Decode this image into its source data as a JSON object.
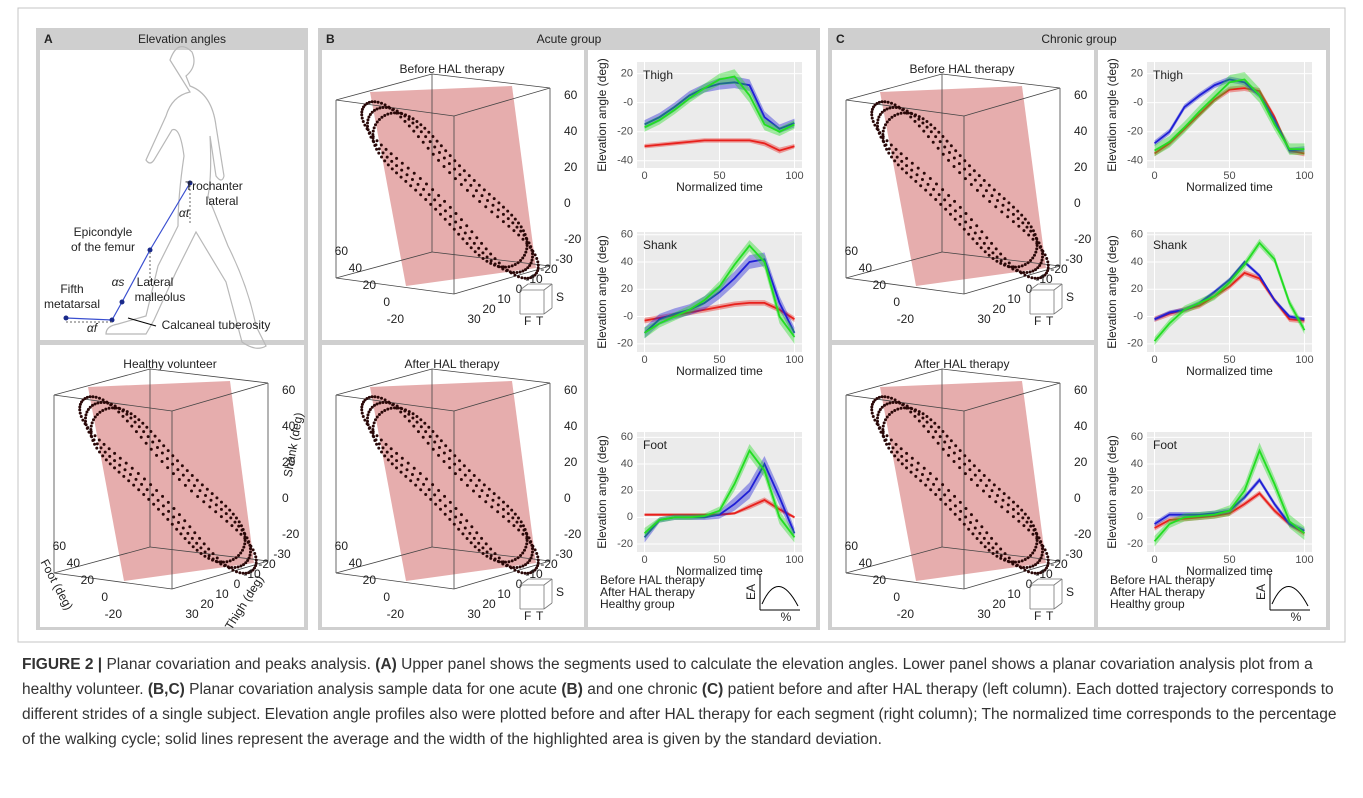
{
  "panels": [
    {
      "letter": "A",
      "title": "Elevation angles",
      "anatomy_labels": [
        "Trochanter",
        "lateral",
        "Epicondyle",
        "of the femur",
        "Fifth",
        "metatarsal",
        "Lateral",
        "malleolus",
        "Calcaneal tuberosity",
        "αt",
        "αs",
        "αf"
      ],
      "plots": [
        {
          "title": "Healthy volunteer",
          "axis_labels": [
            "Shank (deg)",
            "Foot (deg)",
            "Thigh (deg)"
          ],
          "z_ticks": [
            60,
            40,
            20,
            0,
            -20
          ],
          "y_ticks": [
            60,
            40,
            20,
            0,
            -20
          ],
          "x_ticks": [
            -30,
            -20,
            -10,
            0,
            10,
            20,
            30
          ]
        }
      ]
    },
    {
      "letter": "B",
      "title": "Acute group",
      "plots": [
        {
          "title": "Before HAL therapy",
          "orientation": [
            "S",
            "F",
            "T"
          ],
          "z_ticks": [
            60,
            40,
            20,
            0,
            -20
          ],
          "y_ticks": [
            60,
            40,
            20,
            0,
            -20
          ],
          "x_ticks": [
            -30,
            -20,
            -10,
            0,
            10,
            20,
            30
          ]
        },
        {
          "title": "After HAL therapy",
          "orientation": [
            "S",
            "F",
            "T"
          ],
          "z_ticks": [
            60,
            40,
            20,
            0,
            -20
          ],
          "y_ticks": [
            60,
            40,
            20,
            0,
            -20
          ],
          "x_ticks": [
            -30,
            -20,
            -10,
            0,
            10,
            20,
            30
          ]
        }
      ],
      "legend_inset": [
        "EA",
        "%"
      ]
    },
    {
      "letter": "C",
      "title": "Chronic group",
      "plots": [
        {
          "title": "Before HAL therapy",
          "orientation": [
            "S",
            "F",
            "T"
          ],
          "z_ticks": [
            60,
            40,
            20,
            0,
            -20
          ],
          "y_ticks": [
            60,
            40,
            20,
            0,
            -20
          ],
          "x_ticks": [
            -30,
            -20,
            -10,
            0,
            10,
            20,
            30
          ]
        },
        {
          "title": "After HAL therapy",
          "orientation": [
            "S",
            "F",
            "T"
          ],
          "z_ticks": [
            60,
            40,
            20,
            0,
            -20
          ],
          "y_ticks": [
            60,
            40,
            20,
            0,
            -20
          ],
          "x_ticks": [
            -30,
            -20,
            -10,
            0,
            10,
            20,
            30
          ]
        }
      ],
      "legend_inset": [
        "EA",
        "%"
      ]
    }
  ],
  "chart_data": [
    {
      "type": "line",
      "title": "Thigh",
      "x_label": "Normalized time",
      "y_label": "Elevation angle (deg)",
      "x": [
        0,
        10,
        20,
        30,
        40,
        50,
        60,
        70,
        80,
        90,
        100
      ],
      "xlim": [
        -5,
        105
      ],
      "xticks": [
        0,
        50,
        100
      ],
      "ylim": [
        -45,
        28
      ],
      "yticks": [
        -40,
        -20,
        {
          "value": 0,
          "label": "-0"
        },
        20
      ],
      "grid": true,
      "series": [
        {
          "name": "Before HAL therapy",
          "color": "#e8201c",
          "values": [
            -30,
            -29,
            -28,
            -27,
            -26,
            -26,
            -26,
            -26,
            -28,
            -33,
            -30
          ],
          "sd": [
            1.5,
            1.5,
            1.5,
            1.5,
            1.5,
            1.5,
            1.5,
            1.5,
            2,
            2,
            1.5
          ]
        },
        {
          "name": "After HAL therapy",
          "color": "#1f1fd6",
          "values": [
            -15,
            -10,
            -3,
            5,
            10,
            13,
            14,
            12,
            -10,
            -18,
            -14
          ],
          "sd": [
            3,
            3,
            3,
            3,
            3,
            4,
            4,
            4,
            4,
            3,
            3
          ]
        },
        {
          "name": "Healthy group",
          "color": "#22dd22",
          "values": [
            -17,
            -12,
            -5,
            3,
            10,
            16,
            18,
            5,
            -15,
            -20,
            -15
          ],
          "sd": [
            3,
            3,
            3,
            3,
            3,
            4,
            5,
            5,
            4,
            3,
            3
          ]
        }
      ]
    },
    {
      "type": "line",
      "title": "Shank",
      "x_label": "Normalized time",
      "y_label": "Elevation angle (deg)",
      "x": [
        0,
        10,
        20,
        30,
        40,
        50,
        60,
        70,
        80,
        90,
        100
      ],
      "xlim": [
        -5,
        105
      ],
      "xticks": [
        0,
        50,
        100
      ],
      "ylim": [
        -26,
        62
      ],
      "yticks": [
        -20,
        {
          "value": 0,
          "label": "-0"
        },
        20,
        40,
        60
      ],
      "grid": true,
      "series": [
        {
          "name": "Before HAL therapy",
          "color": "#e8201c",
          "values": [
            -3,
            -1,
            1,
            3,
            5,
            7,
            9,
            10,
            10,
            5,
            -2
          ],
          "sd": [
            2,
            2,
            2,
            2,
            2,
            2,
            2,
            2,
            2,
            2,
            2
          ]
        },
        {
          "name": "After HAL therapy",
          "color": "#1f1fd6",
          "values": [
            -12,
            -2,
            2,
            5,
            10,
            18,
            28,
            40,
            42,
            10,
            -12
          ],
          "sd": [
            4,
            4,
            4,
            4,
            5,
            5,
            5,
            5,
            5,
            5,
            4
          ]
        },
        {
          "name": "Healthy group",
          "color": "#22dd22",
          "values": [
            -12,
            -5,
            0,
            5,
            12,
            22,
            38,
            52,
            40,
            0,
            -15
          ],
          "sd": [
            4,
            3,
            3,
            3,
            3,
            4,
            4,
            4,
            5,
            5,
            5
          ]
        }
      ]
    },
    {
      "type": "line",
      "title": "Foot",
      "x_label": "Normalized time",
      "y_label": "Elevation angle (deg)",
      "x": [
        0,
        10,
        20,
        30,
        40,
        50,
        60,
        70,
        80,
        90,
        100
      ],
      "xlim": [
        -5,
        105
      ],
      "xticks": [
        0,
        50,
        100
      ],
      "ylim": [
        -26,
        64
      ],
      "yticks": [
        -20,
        0,
        20,
        40,
        60
      ],
      "grid": true,
      "series": [
        {
          "name": "Before HAL therapy",
          "color": "#e8201c",
          "values": [
            2,
            2,
            2,
            2,
            2,
            2,
            3,
            8,
            13,
            6,
            0
          ],
          "sd": [
            1,
            1,
            1,
            1,
            1,
            1,
            1,
            2,
            2,
            2,
            1
          ]
        },
        {
          "name": "After HAL therapy",
          "color": "#1f1fd6",
          "values": [
            -15,
            -2,
            0,
            0,
            0,
            2,
            10,
            20,
            40,
            15,
            -12
          ],
          "sd": [
            4,
            2,
            2,
            2,
            2,
            3,
            5,
            6,
            6,
            6,
            4
          ]
        },
        {
          "name": "Healthy group",
          "color": "#22dd22",
          "values": [
            -12,
            -2,
            0,
            0,
            1,
            5,
            25,
            50,
            35,
            0,
            -15
          ],
          "sd": [
            4,
            2,
            2,
            2,
            2,
            3,
            5,
            5,
            5,
            5,
            4
          ]
        }
      ]
    },
    {
      "type": "line",
      "title": "Thigh",
      "x_label": "Normalized time",
      "y_label": "Elevation angle (deg)",
      "x": [
        0,
        10,
        20,
        30,
        40,
        50,
        60,
        70,
        80,
        90,
        100
      ],
      "xlim": [
        -5,
        105
      ],
      "xticks": [
        0,
        50,
        100
      ],
      "ylim": [
        -45,
        28
      ],
      "yticks": [
        -40,
        -20,
        {
          "value": 0,
          "label": "-0"
        },
        20
      ],
      "grid": true,
      "series": [
        {
          "name": "Before HAL therapy",
          "color": "#e8201c",
          "values": [
            -35,
            -28,
            -18,
            -8,
            2,
            9,
            10,
            8,
            -10,
            -33,
            -35
          ],
          "sd": [
            2,
            2,
            2,
            2,
            2,
            2,
            2,
            2,
            2,
            2,
            2
          ]
        },
        {
          "name": "After HAL therapy",
          "color": "#1f1fd6",
          "values": [
            -28,
            -20,
            -3,
            5,
            12,
            16,
            14,
            5,
            -12,
            -33,
            -32
          ],
          "sd": [
            2,
            2,
            2,
            2,
            2,
            2,
            2,
            2,
            2,
            2,
            2
          ]
        },
        {
          "name": "Healthy group",
          "color": "#22dd22",
          "values": [
            -33,
            -27,
            -17,
            -6,
            4,
            14,
            16,
            5,
            -15,
            -32,
            -32
          ],
          "sd": [
            4,
            4,
            4,
            4,
            4,
            5,
            5,
            5,
            4,
            4,
            4
          ]
        }
      ]
    },
    {
      "type": "line",
      "title": "Shank",
      "x_label": "Normalized time",
      "y_label": "Elevation angle (deg)",
      "x": [
        0,
        10,
        20,
        30,
        40,
        50,
        60,
        70,
        80,
        90,
        100
      ],
      "xlim": [
        -5,
        105
      ],
      "xticks": [
        0,
        50,
        100
      ],
      "ylim": [
        -26,
        62
      ],
      "yticks": [
        -20,
        {
          "value": 0,
          "label": "-0"
        },
        20,
        40,
        60
      ],
      "grid": true,
      "series": [
        {
          "name": "Before HAL therapy",
          "color": "#e8201c",
          "values": [
            -2,
            2,
            5,
            8,
            15,
            22,
            32,
            28,
            12,
            -2,
            -3
          ],
          "sd": [
            2,
            2,
            2,
            2,
            2,
            2,
            2,
            2,
            2,
            2,
            2
          ]
        },
        {
          "name": "After HAL therapy",
          "color": "#1f1fd6",
          "values": [
            -2,
            3,
            5,
            10,
            18,
            27,
            40,
            30,
            12,
            0,
            -2
          ],
          "sd": [
            1.5,
            1.5,
            1.5,
            1.5,
            1.5,
            1.5,
            1.5,
            1.5,
            1.5,
            1.5,
            1.5
          ]
        },
        {
          "name": "Healthy group",
          "color": "#22dd22",
          "values": [
            -18,
            -5,
            5,
            10,
            15,
            25,
            38,
            54,
            42,
            10,
            -10
          ],
          "sd": [
            3,
            3,
            3,
            3,
            3,
            3,
            3,
            3,
            3,
            3,
            3
          ]
        }
      ]
    },
    {
      "type": "line",
      "title": "Foot",
      "x_label": "Normalized time",
      "y_label": "Elevation angle (deg)",
      "x": [
        0,
        10,
        20,
        30,
        40,
        50,
        60,
        70,
        80,
        90,
        100
      ],
      "xlim": [
        -5,
        105
      ],
      "xticks": [
        0,
        50,
        100
      ],
      "ylim": [
        -26,
        64
      ],
      "yticks": [
        -20,
        0,
        20,
        40,
        60
      ],
      "grid": true,
      "series": [
        {
          "name": "Before HAL therapy",
          "color": "#e8201c",
          "values": [
            -8,
            -2,
            -1,
            0,
            1,
            3,
            10,
            18,
            5,
            -5,
            -12
          ],
          "sd": [
            2,
            2,
            2,
            2,
            2,
            2,
            2,
            2,
            2,
            2,
            2
          ]
        },
        {
          "name": "After HAL therapy",
          "color": "#1f1fd6",
          "values": [
            -5,
            2,
            2,
            2,
            3,
            5,
            15,
            28,
            10,
            -5,
            -10
          ],
          "sd": [
            2,
            2,
            2,
            2,
            2,
            2,
            2,
            2,
            2,
            2,
            2
          ]
        },
        {
          "name": "Healthy group",
          "color": "#22dd22",
          "values": [
            -18,
            -5,
            0,
            1,
            2,
            5,
            20,
            50,
            25,
            -3,
            -12
          ],
          "sd": [
            4,
            3,
            3,
            3,
            3,
            4,
            5,
            6,
            5,
            5,
            5
          ]
        }
      ]
    }
  ],
  "caption": [
    {
      "text": "FIGURE 2 |",
      "bold": true
    },
    {
      "text": " Planar covariation and peaks analysis. ",
      "bold": false
    },
    {
      "text": "(A)",
      "bold": true
    },
    {
      "text": " Upper panel shows the segments used to calculate the elevation angles. Lower panel shows a planar covariation analysis plot from a healthy volunteer. ",
      "bold": false
    },
    {
      "text": "(B,C)",
      "bold": true
    },
    {
      "text": " Planar covariation analysis sample data for one acute ",
      "bold": false
    },
    {
      "text": "(B)",
      "bold": true
    },
    {
      "text": " and one chronic ",
      "bold": false
    },
    {
      "text": "(C)",
      "bold": true
    },
    {
      "text": " patient before and after HAL therapy (left column). Each dotted trajectory corresponds to different strides of a single subject. Elevation angle profiles also were plotted before and after HAL therapy for each segment (right column); The normalized time corresponds to the percentage of the walking cycle; solid lines represent the average and the width of the highlighted area is given by the standard deviation.",
      "bold": false
    }
  ]
}
